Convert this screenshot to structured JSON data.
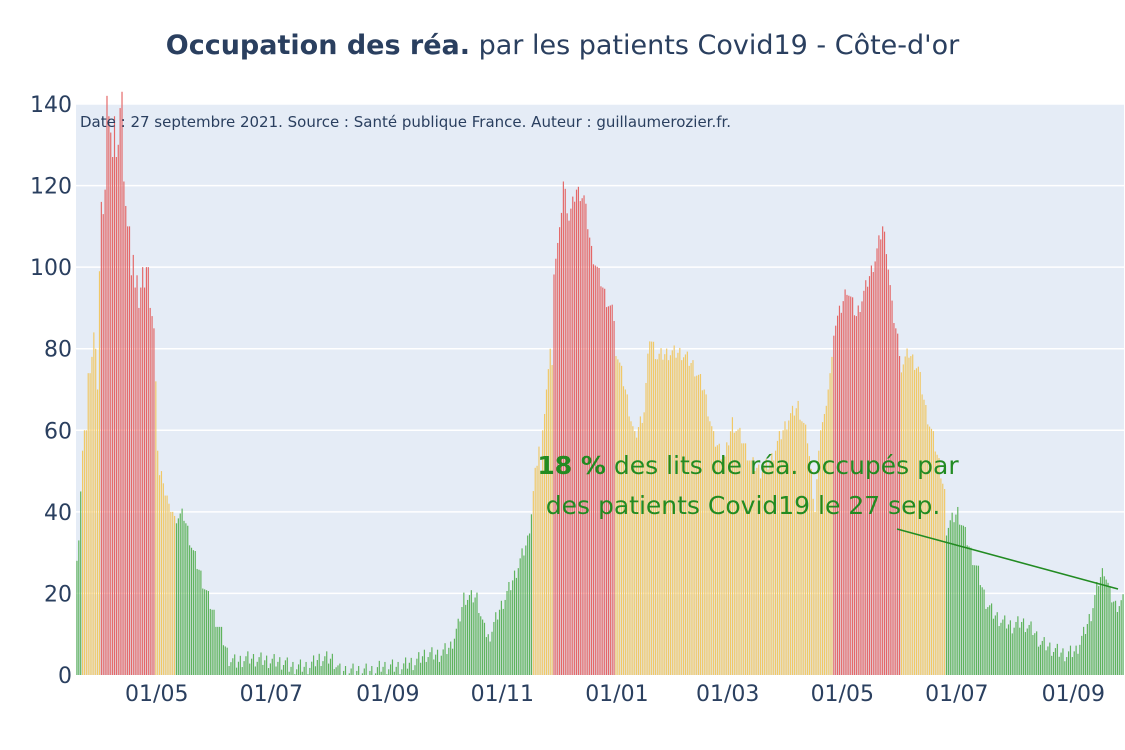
{
  "title": {
    "bold": "Occupation des réa.",
    "rest": " par les patients Covid19 - Côte-d'or"
  },
  "source_note": "Date : 27 septembre 2021. Source : Santé publique France. Auteur : guillaumerozier.fr.",
  "annotation": {
    "number": "18",
    "percent": " %",
    "line1_rest": " des lits de réa. occupés par",
    "line2": "des patients Covid19 le 27 sep."
  },
  "colors": {
    "green": "#5fb35c",
    "yellow": "#f0c867",
    "red": "#e46767",
    "plot_bg": "#e5ecf6",
    "grid": "#ffffff",
    "annotation": "#228b22"
  },
  "chart_data": {
    "type": "bar",
    "x_range": [
      "2020-03-19",
      "2021-09-27"
    ],
    "ylim": [
      0,
      140
    ],
    "y_ticks": [
      "0",
      "20",
      "40",
      "60",
      "80",
      "100",
      "120",
      "140"
    ],
    "x_ticks": [
      {
        "date": "2020-05-01",
        "label": "01/05"
      },
      {
        "date": "2020-07-01",
        "label": "01/07"
      },
      {
        "date": "2020-09-01",
        "label": "01/09"
      },
      {
        "date": "2020-11-01",
        "label": "01/11"
      },
      {
        "date": "2021-01-01",
        "label": "01/01"
      },
      {
        "date": "2021-03-01",
        "label": "01/03"
      },
      {
        "date": "2021-05-01",
        "label": "01/05"
      },
      {
        "date": "2021-07-01",
        "label": "01/07"
      },
      {
        "date": "2021-09-01",
        "label": "01/09"
      }
    ],
    "color_rule": "bars colored by occupancy level: green low, yellow medium, red high",
    "series": [
      {
        "start": "2020-03-19",
        "end": "2020-03-21",
        "color": "green",
        "values": [
          28,
          33,
          45
        ]
      },
      {
        "start": "2020-03-22",
        "end": "2020-03-31",
        "color": "yellow",
        "values": [
          55,
          60,
          60,
          74,
          74,
          78,
          84,
          80,
          70,
          99
        ]
      },
      {
        "start": "2020-04-01",
        "end": "2020-04-29",
        "color": "red",
        "values": [
          116,
          113,
          119,
          142,
          137,
          133,
          127,
          137,
          127,
          130,
          139,
          143,
          121,
          115,
          110,
          110,
          98,
          103,
          95,
          98,
          90,
          95,
          100,
          95,
          100,
          100,
          90,
          88,
          85
        ]
      },
      {
        "start": "2020-04-30",
        "end": "2020-05-10",
        "color": "yellow",
        "values": [
          72,
          55,
          49,
          50,
          47,
          44,
          44,
          42,
          40,
          40,
          39
        ]
      },
      {
        "start": "2020-05-11",
        "end": "2020-10-24",
        "color": "green",
        "anchors": [
          [
            "2020-05-11",
            39
          ],
          [
            "2020-05-15",
            39
          ],
          [
            "2020-05-20",
            30
          ],
          [
            "2020-05-25",
            23
          ],
          [
            "2020-05-30",
            16
          ],
          [
            "2020-06-04",
            10
          ],
          [
            "2020-06-08",
            4
          ],
          [
            "2020-06-12",
            3
          ],
          [
            "2020-06-16",
            4
          ],
          [
            "2020-06-20",
            4
          ],
          [
            "2020-07-08",
            3
          ],
          [
            "2020-07-10",
            2
          ],
          [
            "2020-07-20",
            2
          ],
          [
            "2020-07-26",
            4
          ],
          [
            "2020-08-02",
            4
          ],
          [
            "2020-08-06",
            1
          ],
          [
            "2020-08-25",
            1
          ],
          [
            "2020-08-28",
            2
          ],
          [
            "2020-09-08",
            2
          ],
          [
            "2020-09-12",
            3
          ],
          [
            "2020-09-15",
            3
          ],
          [
            "2020-09-20",
            5
          ],
          [
            "2020-09-28",
            5
          ],
          [
            "2020-10-04",
            7
          ],
          [
            "2020-10-08",
            12
          ],
          [
            "2020-10-11",
            19
          ],
          [
            "2020-10-18",
            19
          ],
          [
            "2020-10-22",
            11
          ],
          [
            "2020-10-24",
            10
          ]
        ]
      },
      {
        "start": "2020-10-25",
        "end": "2020-11-20",
        "color": "green/yellow",
        "anchors": [
          [
            "2020-10-25",
            10
          ],
          [
            "2020-10-30",
            16
          ],
          [
            "2020-11-05",
            22
          ],
          [
            "2020-11-10",
            28
          ],
          [
            "2020-11-14",
            33
          ],
          [
            "2020-11-16",
            40
          ],
          [
            "2020-11-18",
            49
          ],
          [
            "2020-11-20",
            56
          ]
        ]
      },
      {
        "start": "2020-11-21",
        "end": "2020-11-27",
        "color": "yellow",
        "values": [
          50,
          60,
          64,
          70,
          75,
          80,
          76
        ]
      },
      {
        "start": "2020-11-28",
        "end": "2020-12-30",
        "color": "red",
        "anchors": [
          [
            "2020-11-28",
            100
          ],
          [
            "2020-12-01",
            108
          ],
          [
            "2020-12-03",
            121
          ],
          [
            "2020-12-06",
            112
          ],
          [
            "2020-12-10",
            119
          ],
          [
            "2020-12-14",
            117
          ],
          [
            "2020-12-18",
            104
          ],
          [
            "2020-12-22",
            98
          ],
          [
            "2020-12-26",
            92
          ],
          [
            "2020-12-30",
            88
          ]
        ]
      },
      {
        "start": "2020-12-31",
        "end": "2021-04-15",
        "color": "yellow",
        "anchors": [
          [
            "2020-12-31",
            80
          ],
          [
            "2021-01-05",
            70
          ],
          [
            "2021-01-10",
            58
          ],
          [
            "2021-01-15",
            65
          ],
          [
            "2021-01-18",
            83
          ],
          [
            "2021-01-22",
            78
          ],
          [
            "2021-01-28",
            79
          ],
          [
            "2021-02-04",
            79
          ],
          [
            "2021-02-10",
            76
          ],
          [
            "2021-02-16",
            70
          ],
          [
            "2021-02-21",
            58
          ],
          [
            "2021-02-27",
            53
          ],
          [
            "2021-03-03",
            62
          ],
          [
            "2021-03-08",
            58
          ],
          [
            "2021-03-13",
            52
          ],
          [
            "2021-03-18",
            50
          ],
          [
            "2021-03-23",
            52
          ],
          [
            "2021-03-28",
            58
          ],
          [
            "2021-04-02",
            63
          ],
          [
            "2021-04-07",
            66
          ],
          [
            "2021-04-12",
            58
          ],
          [
            "2021-04-15",
            45
          ]
        ]
      },
      {
        "start": "2021-04-16",
        "end": "2021-04-25",
        "color": "yellow",
        "values": [
          40,
          48,
          55,
          60,
          62,
          64,
          66,
          70,
          74,
          78
        ]
      },
      {
        "start": "2021-04-26",
        "end": "2021-05-31",
        "color": "red",
        "anchors": [
          [
            "2021-04-26",
            85
          ],
          [
            "2021-04-30",
            90
          ],
          [
            "2021-05-03",
            95
          ],
          [
            "2021-05-08",
            88
          ],
          [
            "2021-05-13",
            95
          ],
          [
            "2021-05-18",
            102
          ],
          [
            "2021-05-22",
            110
          ],
          [
            "2021-05-24",
            105
          ],
          [
            "2021-05-27",
            90
          ],
          [
            "2021-05-31",
            80
          ]
        ]
      },
      {
        "start": "2021-06-01",
        "end": "2021-06-24",
        "color": "yellow",
        "anchors": [
          [
            "2021-06-01",
            76
          ],
          [
            "2021-06-05",
            79
          ],
          [
            "2021-06-10",
            75
          ],
          [
            "2021-06-14",
            65
          ],
          [
            "2021-06-18",
            58
          ],
          [
            "2021-06-22",
            50
          ],
          [
            "2021-06-24",
            45
          ]
        ]
      },
      {
        "start": "2021-06-25",
        "end": "2021-09-27",
        "color": "green",
        "anchors": [
          [
            "2021-06-25",
            36
          ],
          [
            "2021-06-28",
            38
          ],
          [
            "2021-07-01",
            40
          ],
          [
            "2021-07-04",
            36
          ],
          [
            "2021-07-08",
            30
          ],
          [
            "2021-07-12",
            25
          ],
          [
            "2021-07-16",
            18
          ],
          [
            "2021-07-20",
            15
          ],
          [
            "2021-07-25",
            13
          ],
          [
            "2021-07-30",
            12
          ],
          [
            "2021-08-04",
            13
          ],
          [
            "2021-08-10",
            11
          ],
          [
            "2021-08-14",
            8
          ],
          [
            "2021-08-18",
            7
          ],
          [
            "2021-08-22",
            6
          ],
          [
            "2021-08-28",
            5
          ],
          [
            "2021-09-02",
            6
          ],
          [
            "2021-09-06",
            10
          ],
          [
            "2021-09-10",
            15
          ],
          [
            "2021-09-14",
            23
          ],
          [
            "2021-09-17",
            26
          ],
          [
            "2021-09-20",
            20
          ],
          [
            "2021-09-23",
            17
          ],
          [
            "2021-09-27",
            18
          ]
        ]
      }
    ]
  }
}
